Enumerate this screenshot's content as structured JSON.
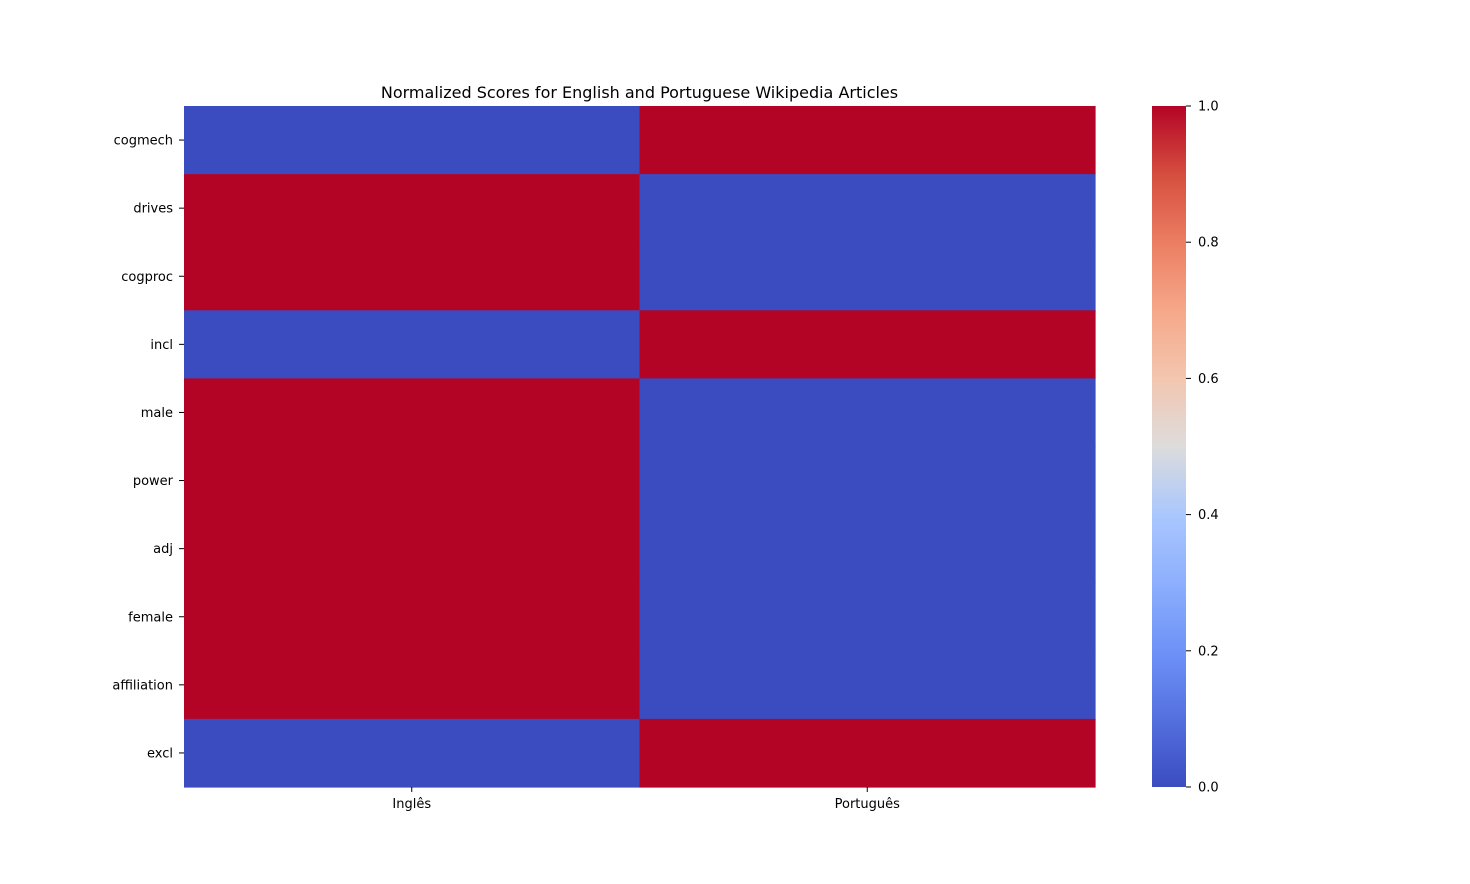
{
  "chart_data": {
    "type": "heatmap",
    "title": "Normalized Scores for English and Portuguese Wikipedia Articles",
    "xlabel": "",
    "ylabel": "",
    "columns": [
      "Inglês",
      "Português"
    ],
    "rows": [
      "cogmech",
      "drives",
      "cogproc",
      "incl",
      "male",
      "power",
      "adj",
      "female",
      "affiliation",
      "excl"
    ],
    "values": [
      [
        0,
        1
      ],
      [
        1,
        0
      ],
      [
        1,
        0
      ],
      [
        0,
        1
      ],
      [
        1,
        0
      ],
      [
        1,
        0
      ],
      [
        1,
        0
      ],
      [
        1,
        0
      ],
      [
        1,
        0
      ],
      [
        0,
        1
      ]
    ],
    "colormap": "coolwarm",
    "colorbar": {
      "min": 0.0,
      "max": 1.0,
      "ticks": [
        "0.0",
        "0.2",
        "0.4",
        "0.6",
        "0.8",
        "1.0"
      ]
    },
    "colors": {
      "low": "#3b4cc0",
      "high": "#b40426"
    },
    "grid": false
  }
}
